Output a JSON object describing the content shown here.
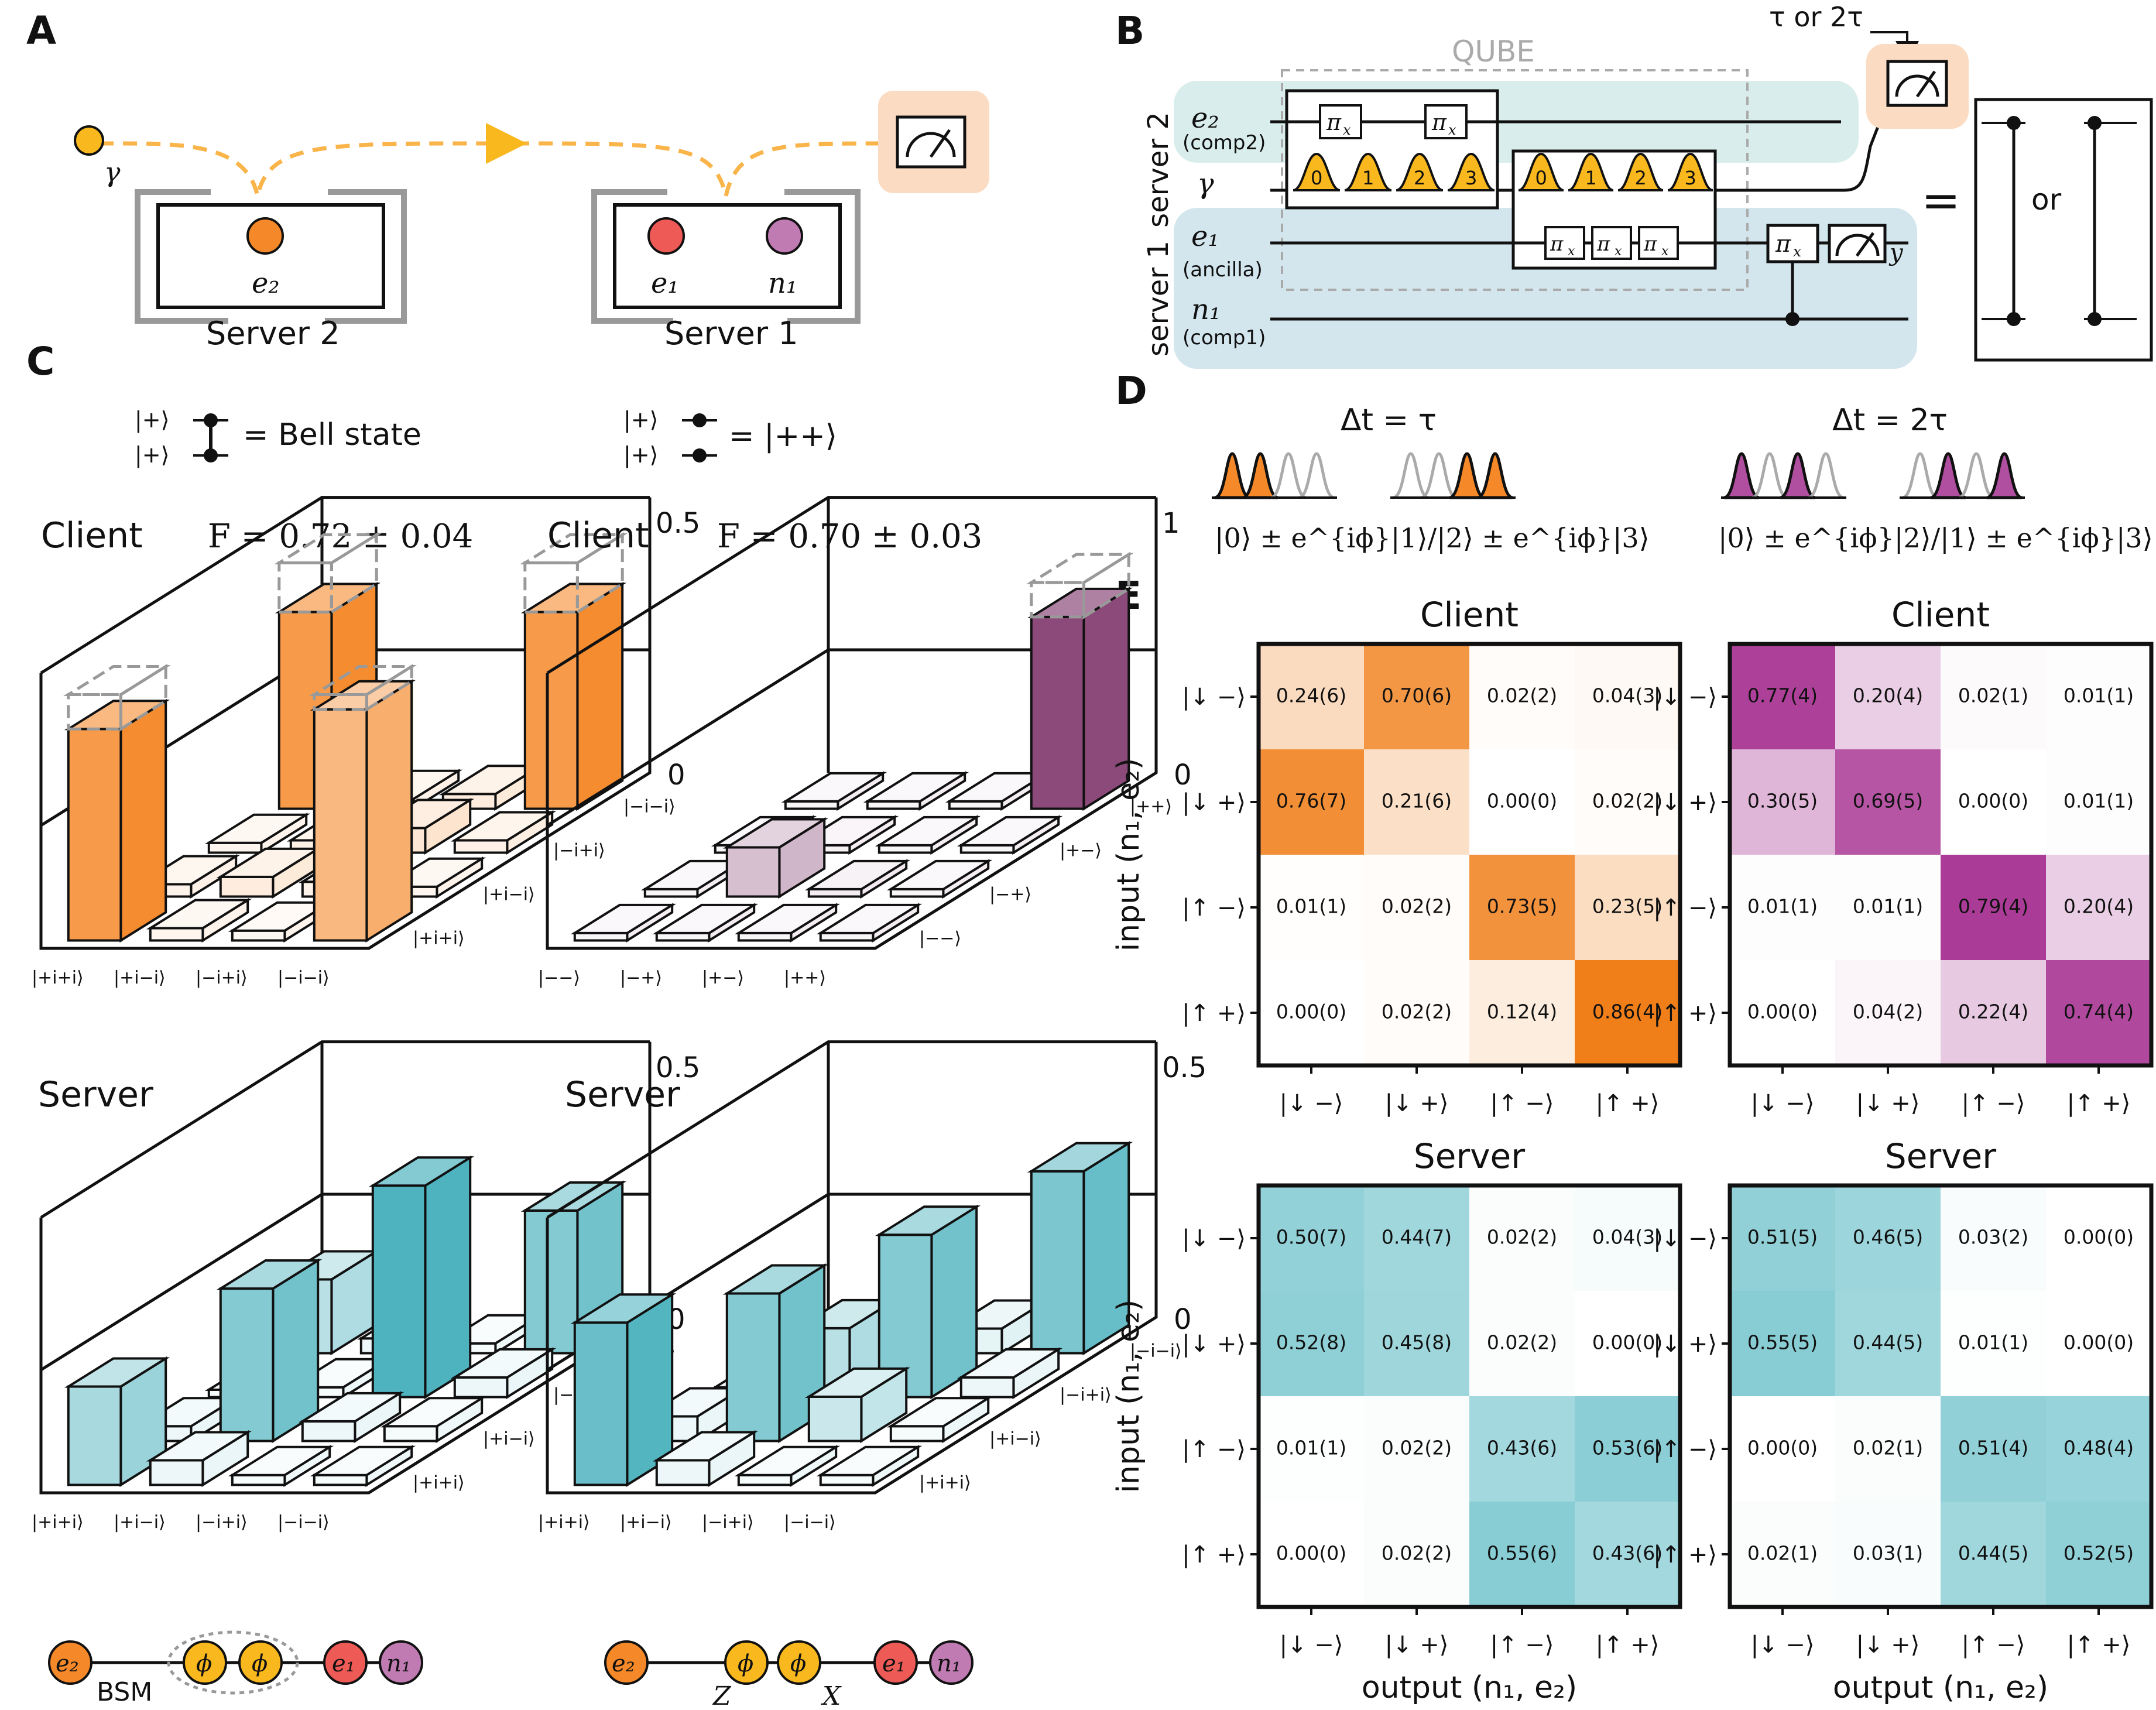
{
  "panels": {
    "A": "A",
    "B": "B",
    "C": "C",
    "D": "D",
    "E": "E"
  },
  "panelA": {
    "photon": "γ",
    "server2_label": "Server 2",
    "server1_label": "Server 1",
    "qubit_e2": "e₂",
    "qubit_e1": "e₁",
    "qubit_n1": "n₁",
    "colors": {
      "e2": "#f5892a",
      "e1": "#ee5a55",
      "n1": "#c07bb3",
      "photon": "#f9b81d",
      "measure_bg": "#fbdcc3"
    }
  },
  "panelB": {
    "qube": "QUBE",
    "server2": "server 2",
    "server1": "server 1",
    "wires": [
      {
        "name": "e₂",
        "sub": "(comp2)"
      },
      {
        "name": "γ",
        "sub": ""
      },
      {
        "name": "e₁",
        "sub": "(ancilla)"
      },
      {
        "name": "n₁",
        "sub": "(comp1)"
      }
    ],
    "pi_x": "π",
    "pi_x_sub": "x",
    "time_bins": [
      "0",
      "1",
      "2",
      "3"
    ],
    "delay": "τ or 2τ",
    "outcome": "y",
    "equals": "=",
    "or": "or",
    "colors": {
      "server2_bg": "#d9eeec",
      "server1_bg": "#d3e6ee",
      "measure_bg": "#fbdcc3",
      "bins": "#f9b81d"
    }
  },
  "panelC": {
    "legend_bell": {
      "state_top": "|+⟩",
      "state_bottom": "|+⟩",
      "text": "= Bell state"
    },
    "legend_pp": {
      "state_top": "|+⟩",
      "state_bottom": "|+⟩",
      "text": "= |++⟩"
    },
    "plots": [
      {
        "title": "Client",
        "fidelity": "F = 0.72 ± 0.04",
        "zmax": "0.5",
        "zmin": "0",
        "x_ticks": [
          "|+i+i⟩",
          "|+i−i⟩",
          "|−i+i⟩",
          "|−i−i⟩"
        ],
        "y_ticks": [
          "|+i+i⟩",
          "|+i−i⟩",
          "|−i+i⟩",
          "|−i−i⟩"
        ],
        "color": "#f5892a"
      },
      {
        "title": "Client",
        "fidelity": "F = 0.70 ± 0.03",
        "zmax": "1",
        "zmin": "0",
        "x_ticks": [
          "|−−⟩",
          "|−+⟩",
          "|+−⟩",
          "|++⟩"
        ],
        "y_ticks": [
          "|−−⟩",
          "|−+⟩",
          "|+−⟩",
          "|++⟩"
        ],
        "color": "#8b4a7a"
      },
      {
        "title": "Server",
        "fidelity": "",
        "zmax": "0.5",
        "zmin": "0",
        "x_ticks": [
          "|+i+i⟩",
          "|+i−i⟩",
          "|−i+i⟩",
          "|−i−i⟩"
        ],
        "y_ticks": [
          "|+i+i⟩",
          "|+i−i⟩",
          "|−i+i⟩",
          "|−i−i⟩"
        ],
        "color": "#4fb3bf"
      },
      {
        "title": "Server",
        "fidelity": "",
        "zmax": "0.5",
        "zmin": "0",
        "x_ticks": [
          "|+i+i⟩",
          "|+i−i⟩",
          "|−i+i⟩",
          "|−i−i⟩"
        ],
        "y_ticks": [
          "|+i+i⟩",
          "|+i−i⟩",
          "|−i+i⟩",
          "|−i−i⟩"
        ],
        "color": "#4fb3bf"
      }
    ],
    "graph_left": {
      "nodes": [
        "e₂",
        "ϕ",
        "ϕ",
        "e₁",
        "n₁"
      ],
      "label": "BSM"
    },
    "graph_right": {
      "nodes": [
        "e₂",
        "ϕ",
        "ϕ",
        "e₁",
        "n₁"
      ],
      "z_label": "Z",
      "x_label": "X"
    }
  },
  "panelD": {
    "left": {
      "title": "Δt = τ",
      "formula": "|0⟩ ± e^{iϕ}|1⟩/|2⟩ ± e^{iϕ}|3⟩",
      "color": "#f5892a"
    },
    "right": {
      "title": "Δt = 2τ",
      "formula": "|0⟩ ± e^{iϕ}|2⟩/|1⟩ ± e^{iϕ}|3⟩",
      "color": "#b04ea0"
    }
  },
  "chart_data": [
    {
      "type": "heatmap",
      "title": "Client",
      "ylabel": "input (n₁, e₂)",
      "xlabel": "",
      "rows": [
        "|↓ −⟩",
        "|↓ +⟩",
        "|↑ −⟩",
        "|↑ +⟩"
      ],
      "cols": [
        "|↓ −⟩",
        "|↓ +⟩",
        "|↑ −⟩",
        "|↑ +⟩"
      ],
      "values": [
        [
          0.24,
          0.7,
          0.02,
          0.04
        ],
        [
          0.76,
          0.21,
          0.0,
          0.02
        ],
        [
          0.01,
          0.02,
          0.73,
          0.23
        ],
        [
          0.0,
          0.02,
          0.12,
          0.86
        ]
      ],
      "labels": [
        [
          "0.24(6)",
          "0.70(6)",
          "0.02(2)",
          "0.04(3)"
        ],
        [
          "0.76(7)",
          "0.21(6)",
          "0.00(0)",
          "0.02(2)"
        ],
        [
          "0.01(1)",
          "0.02(2)",
          "0.73(5)",
          "0.23(5)"
        ],
        [
          "0.00(0)",
          "0.02(2)",
          "0.12(4)",
          "0.86(4)"
        ]
      ],
      "color": "#f07f1a"
    },
    {
      "type": "heatmap",
      "title": "Client",
      "ylabel": "",
      "xlabel": "",
      "rows": [
        "|↓ −⟩",
        "|↓ +⟩",
        "|↑ −⟩",
        "|↑ +⟩"
      ],
      "cols": [
        "|↓ −⟩",
        "|↓ +⟩",
        "|↑ −⟩",
        "|↑ +⟩"
      ],
      "values": [
        [
          0.77,
          0.2,
          0.02,
          0.01
        ],
        [
          0.3,
          0.69,
          0.0,
          0.01
        ],
        [
          0.01,
          0.01,
          0.79,
          0.2
        ],
        [
          0.0,
          0.04,
          0.22,
          0.74
        ]
      ],
      "labels": [
        [
          "0.77(4)",
          "0.20(4)",
          "0.02(1)",
          "0.01(1)"
        ],
        [
          "0.30(5)",
          "0.69(5)",
          "0.00(0)",
          "0.01(1)"
        ],
        [
          "0.01(1)",
          "0.01(1)",
          "0.79(4)",
          "0.20(4)"
        ],
        [
          "0.00(0)",
          "0.04(2)",
          "0.22(4)",
          "0.74(4)"
        ]
      ],
      "color": "#a32b8e"
    },
    {
      "type": "heatmap",
      "title": "Server",
      "ylabel": "input (n₁, e₂)",
      "xlabel": "output (n₁, e₂)",
      "rows": [
        "|↓ −⟩",
        "|↓ +⟩",
        "|↑ −⟩",
        "|↑ +⟩"
      ],
      "cols": [
        "|↓ −⟩",
        "|↓ +⟩",
        "|↑ −⟩",
        "|↑ +⟩"
      ],
      "values": [
        [
          0.5,
          0.44,
          0.02,
          0.04
        ],
        [
          0.52,
          0.45,
          0.02,
          0.0
        ],
        [
          0.01,
          0.02,
          0.43,
          0.53
        ],
        [
          0.0,
          0.02,
          0.55,
          0.43
        ]
      ],
      "labels": [
        [
          "0.50(7)",
          "0.44(7)",
          "0.02(2)",
          "0.04(3)"
        ],
        [
          "0.52(8)",
          "0.45(8)",
          "0.02(2)",
          "0.00(0)"
        ],
        [
          "0.01(1)",
          "0.02(2)",
          "0.43(6)",
          "0.53(6)"
        ],
        [
          "0.00(0)",
          "0.02(2)",
          "0.55(6)",
          "0.43(6)"
        ]
      ],
      "color": "#45b0bc"
    },
    {
      "type": "heatmap",
      "title": "Server",
      "ylabel": "",
      "xlabel": "output (n₁, e₂)",
      "rows": [
        "|↓ −⟩",
        "|↓ +⟩",
        "|↑ −⟩",
        "|↑ +⟩"
      ],
      "cols": [
        "|↓ −⟩",
        "|↓ +⟩",
        "|↑ −⟩",
        "|↑ +⟩"
      ],
      "values": [
        [
          0.51,
          0.46,
          0.03,
          0.0
        ],
        [
          0.55,
          0.44,
          0.01,
          0.0
        ],
        [
          0.0,
          0.02,
          0.51,
          0.48
        ],
        [
          0.02,
          0.03,
          0.44,
          0.52
        ]
      ],
      "labels": [
        [
          "0.51(5)",
          "0.46(5)",
          "0.03(2)",
          "0.00(0)"
        ],
        [
          "0.55(5)",
          "0.44(5)",
          "0.01(1)",
          "0.00(0)"
        ],
        [
          "0.00(0)",
          "0.02(1)",
          "0.51(4)",
          "0.48(4)"
        ],
        [
          "0.02(1)",
          "0.03(1)",
          "0.44(5)",
          "0.52(5)"
        ]
      ],
      "color": "#45b0bc"
    }
  ]
}
